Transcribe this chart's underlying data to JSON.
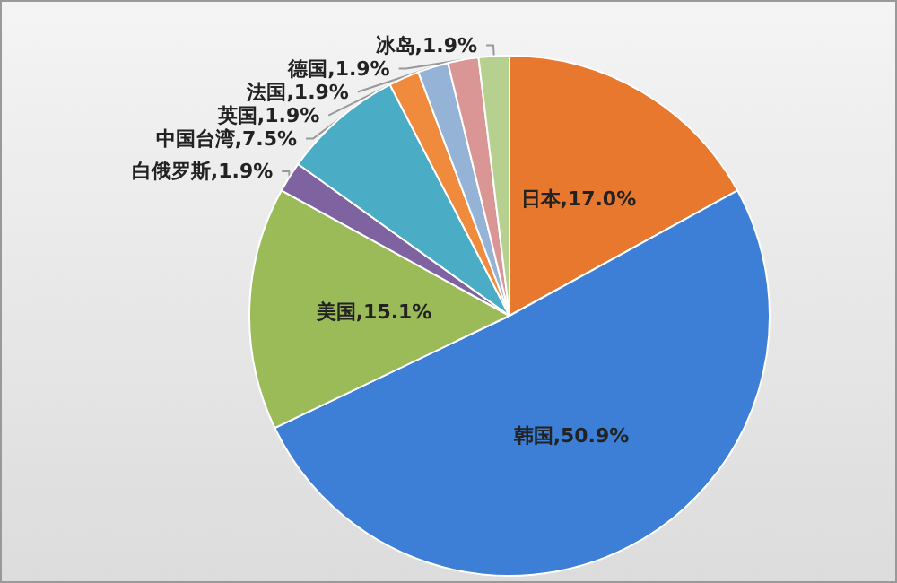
{
  "chart_data": {
    "type": "pie",
    "categories": [
      "日本",
      "韩国",
      "美国",
      "白俄罗斯",
      "中国台湾",
      "英国",
      "法国",
      "德国",
      "冰岛"
    ],
    "values": [
      17.0,
      50.9,
      15.1,
      1.9,
      7.5,
      1.9,
      1.9,
      1.9,
      1.9
    ],
    "value_labels": [
      "17.0%",
      "50.9%",
      "15.1%",
      "1.9%",
      "7.5%",
      "1.9%",
      "1.9%",
      "1.9%",
      "1.9%"
    ],
    "colors": [
      "#e8782e",
      "#3d7fd6",
      "#9bbb59",
      "#7f62a0",
      "#4bacc6",
      "#f08a3c",
      "#95b3d7",
      "#d99694",
      "#b5d08f"
    ],
    "legend": false
  }
}
